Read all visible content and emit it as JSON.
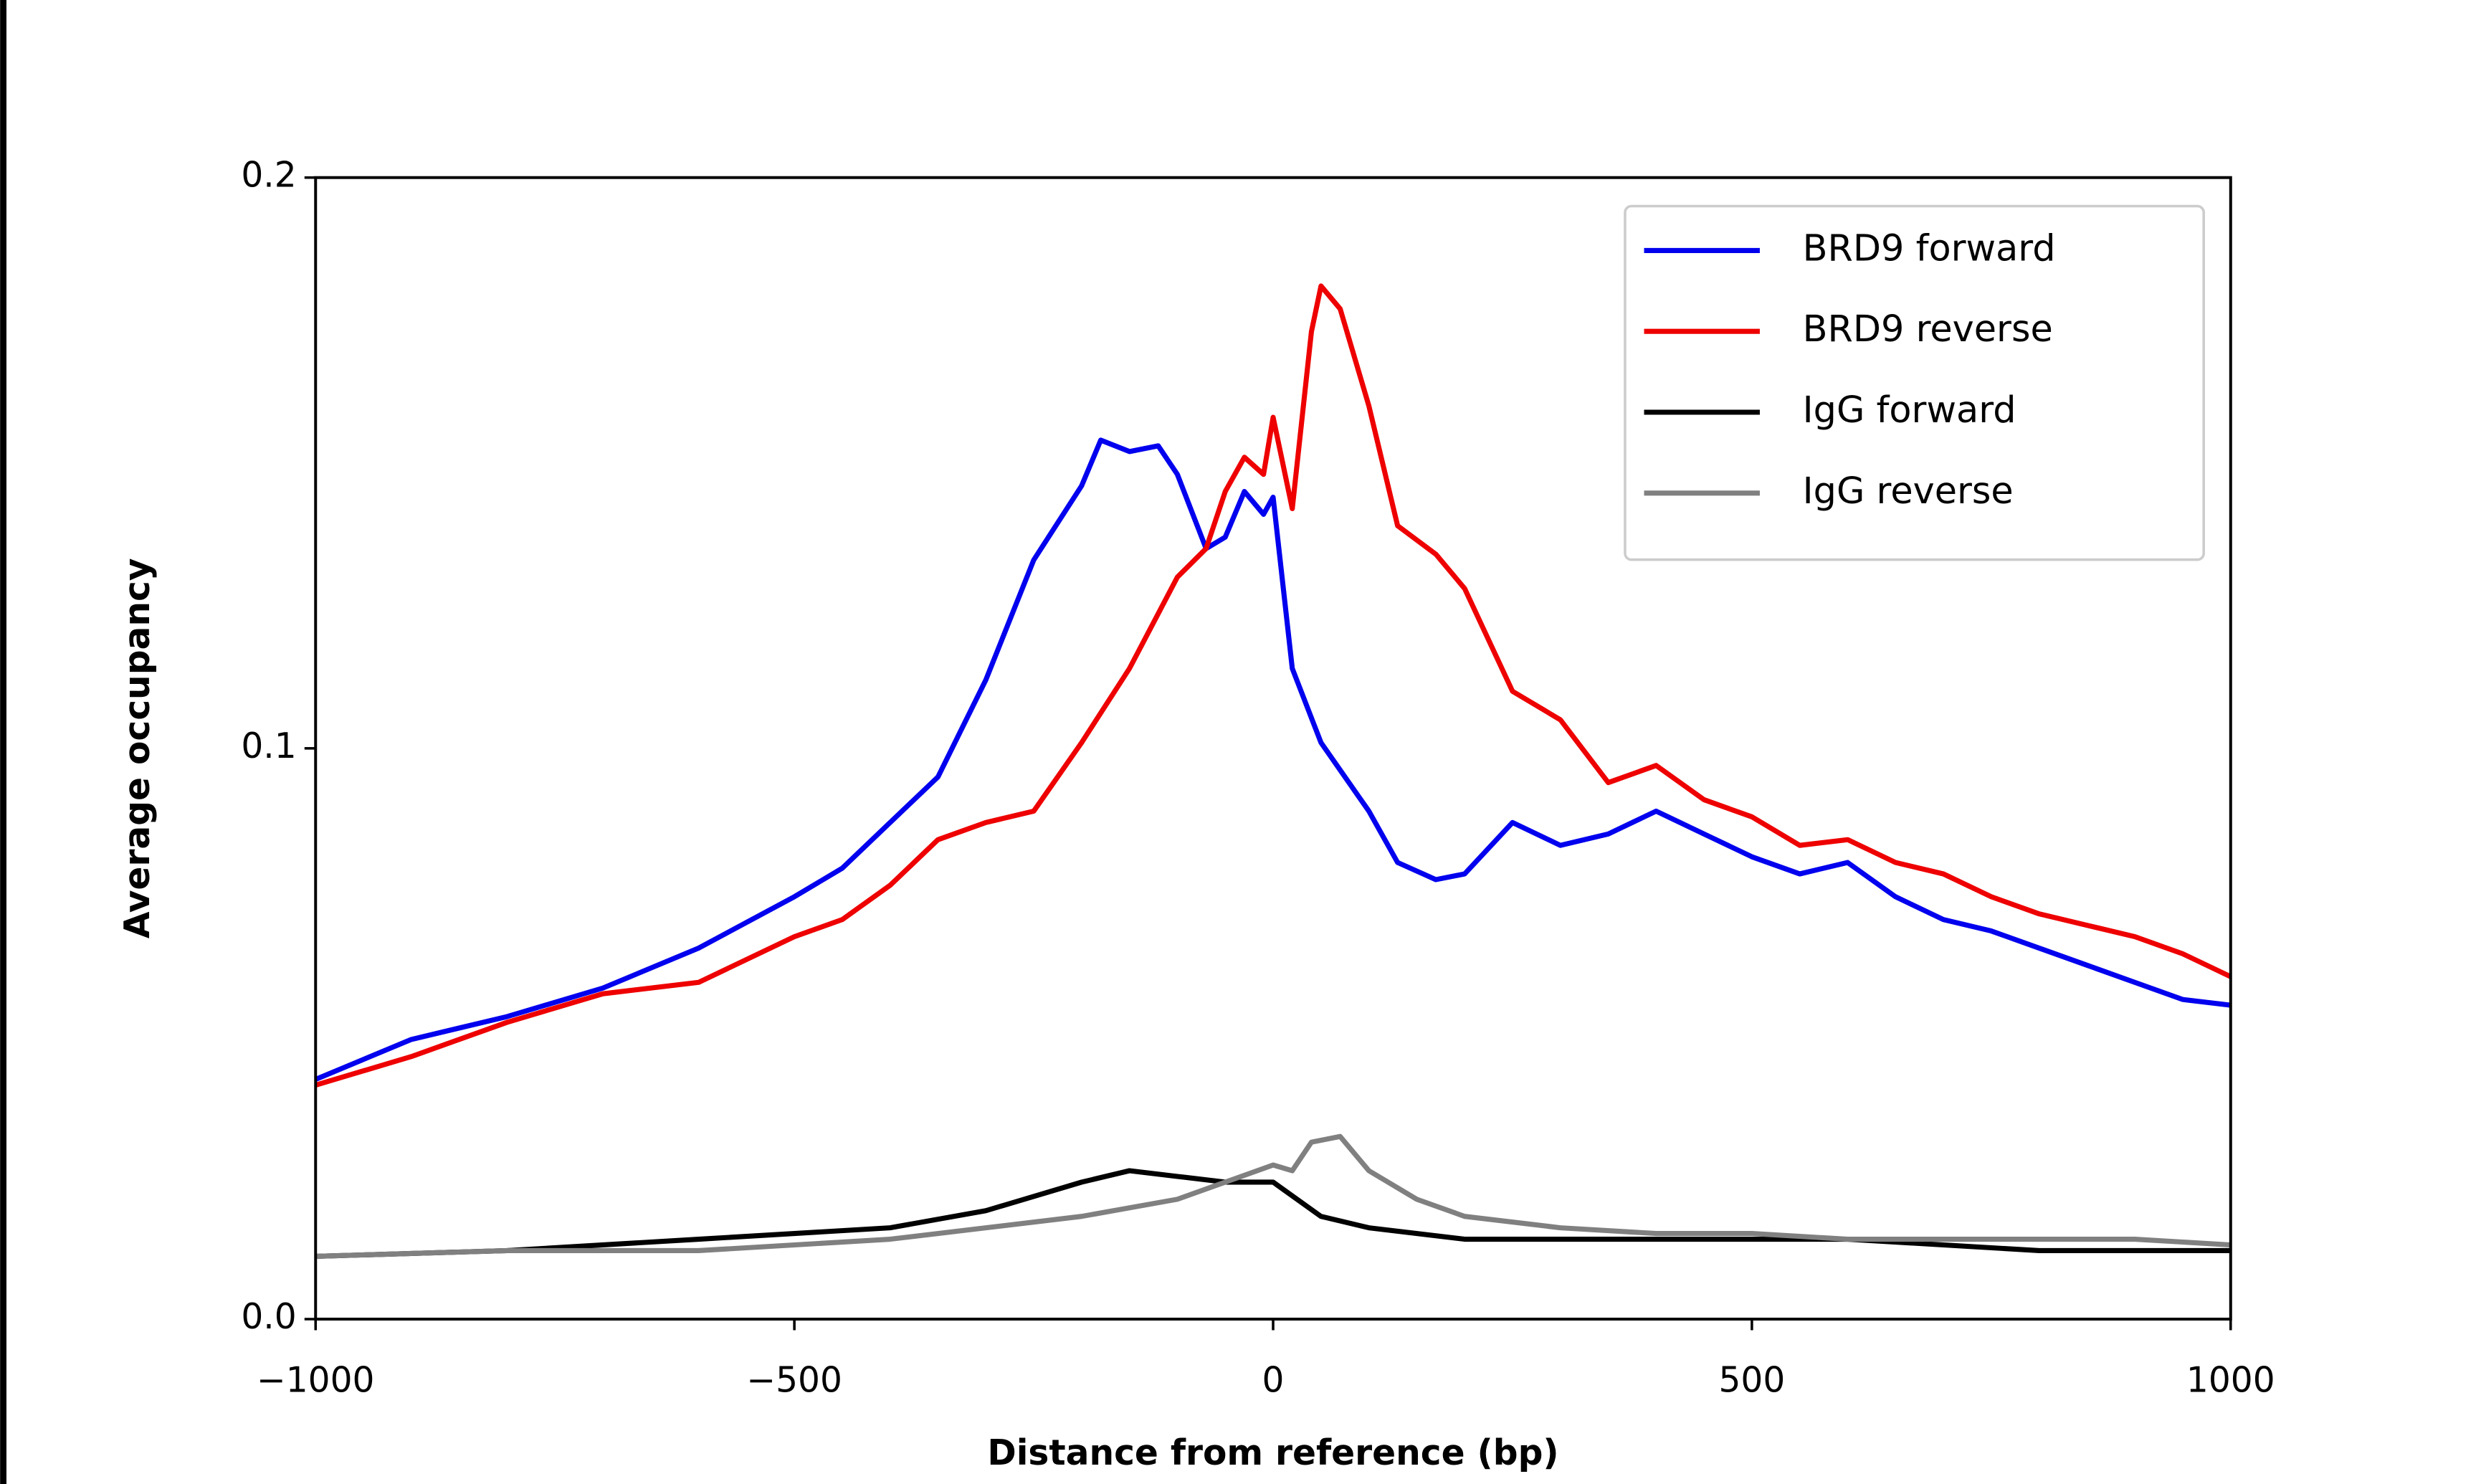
{
  "chart_data": {
    "type": "line",
    "xlabel": "Distance from reference (bp)",
    "ylabel": "Average occupancy",
    "xlim": [
      -1000,
      1000
    ],
    "ylim": [
      0,
      0.2
    ],
    "xticks": [
      {
        "value": -1000,
        "label": "−1000"
      },
      {
        "value": -500,
        "label": "−500"
      },
      0,
      500,
      1000
    ],
    "yticks": [
      {
        "value": 0,
        "label": "0.0"
      },
      0.1,
      0.2
    ],
    "legend": "upper right",
    "series": [
      {
        "name": "BRD9 forward",
        "color": "#0000ee",
        "x": [
          -1000,
          -900,
          -800,
          -700,
          -600,
          -500,
          -450,
          -400,
          -350,
          -300,
          -250,
          -200,
          -180,
          -150,
          -120,
          -100,
          -70,
          -50,
          -30,
          -10,
          0,
          20,
          50,
          100,
          130,
          170,
          200,
          250,
          300,
          350,
          400,
          450,
          500,
          550,
          600,
          650,
          700,
          750,
          800,
          850,
          900,
          950,
          1000
        ],
        "values": [
          0.042,
          0.049,
          0.053,
          0.058,
          0.065,
          0.074,
          0.079,
          0.087,
          0.095,
          0.112,
          0.133,
          0.146,
          0.154,
          0.152,
          0.153,
          0.148,
          0.135,
          0.137,
          0.145,
          0.141,
          0.144,
          0.114,
          0.101,
          0.089,
          0.08,
          0.077,
          0.078,
          0.087,
          0.083,
          0.085,
          0.089,
          0.085,
          0.081,
          0.078,
          0.08,
          0.074,
          0.07,
          0.068,
          0.065,
          0.062,
          0.059,
          0.056,
          0.055
        ]
      },
      {
        "name": "BRD9 reverse",
        "color": "#ee0000",
        "x": [
          -1000,
          -900,
          -800,
          -700,
          -600,
          -500,
          -450,
          -400,
          -350,
          -300,
          -250,
          -200,
          -150,
          -100,
          -70,
          -50,
          -30,
          -10,
          0,
          20,
          40,
          50,
          70,
          100,
          130,
          170,
          200,
          250,
          300,
          350,
          400,
          450,
          500,
          550,
          600,
          650,
          700,
          750,
          800,
          850,
          900,
          950,
          1000
        ],
        "values": [
          0.041,
          0.046,
          0.052,
          0.057,
          0.059,
          0.067,
          0.07,
          0.076,
          0.084,
          0.087,
          0.089,
          0.101,
          0.114,
          0.13,
          0.135,
          0.145,
          0.151,
          0.148,
          0.158,
          0.142,
          0.173,
          0.181,
          0.177,
          0.16,
          0.139,
          0.134,
          0.128,
          0.11,
          0.105,
          0.094,
          0.097,
          0.091,
          0.088,
          0.083,
          0.084,
          0.08,
          0.078,
          0.074,
          0.071,
          0.069,
          0.067,
          0.064,
          0.06
        ]
      },
      {
        "name": "IgG forward",
        "color": "#000000",
        "x": [
          -1000,
          -800,
          -600,
          -400,
          -300,
          -200,
          -150,
          -100,
          -50,
          0,
          50,
          100,
          200,
          300,
          400,
          500,
          600,
          700,
          800,
          900,
          1000
        ],
        "values": [
          0.011,
          0.012,
          0.014,
          0.016,
          0.019,
          0.024,
          0.026,
          0.025,
          0.024,
          0.024,
          0.018,
          0.016,
          0.014,
          0.014,
          0.014,
          0.014,
          0.014,
          0.013,
          0.012,
          0.012,
          0.012
        ]
      },
      {
        "name": "IgG reverse",
        "color": "#808080",
        "x": [
          -1000,
          -800,
          -600,
          -400,
          -300,
          -200,
          -100,
          -50,
          0,
          20,
          40,
          70,
          100,
          150,
          200,
          300,
          400,
          500,
          600,
          700,
          800,
          900,
          1000
        ],
        "values": [
          0.011,
          0.012,
          0.012,
          0.014,
          0.016,
          0.018,
          0.021,
          0.024,
          0.027,
          0.026,
          0.031,
          0.032,
          0.026,
          0.021,
          0.018,
          0.016,
          0.015,
          0.015,
          0.014,
          0.014,
          0.014,
          0.014,
          0.013
        ]
      }
    ]
  }
}
